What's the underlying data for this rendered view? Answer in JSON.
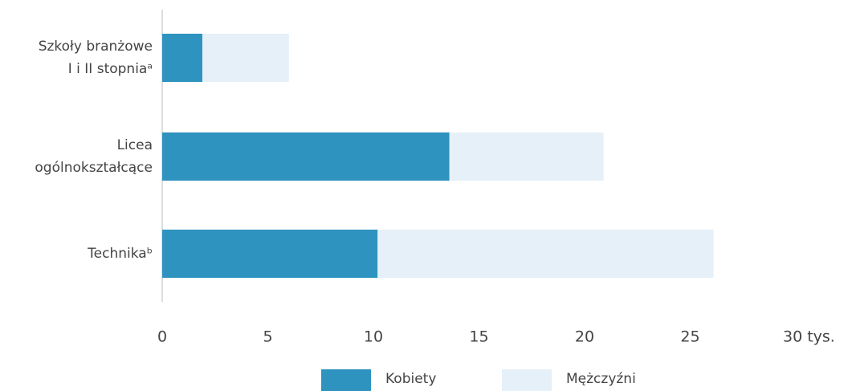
{
  "chart_data": {
    "type": "stacked_barh",
    "categories": [
      [
        "Szkoły branżowe",
        "I i II stopniaᵃ"
      ],
      [
        "Licea",
        "ogólnokształcące"
      ],
      [
        "Technikaᵇ"
      ]
    ],
    "series": [
      {
        "name": "Kobiety",
        "color": "#2e93bf",
        "values": [
          1.9,
          13.6,
          10.2
        ]
      },
      {
        "name": "Mężczyźni",
        "color": "#e6f0f8",
        "values": [
          4.1,
          7.3,
          15.9
        ]
      }
    ],
    "xlim": [
      0,
      30
    ],
    "xticks": [
      0,
      5,
      10,
      15,
      20,
      25,
      {
        "value": 30,
        "label": "30 tys."
      }
    ],
    "legend": "bottom"
  }
}
